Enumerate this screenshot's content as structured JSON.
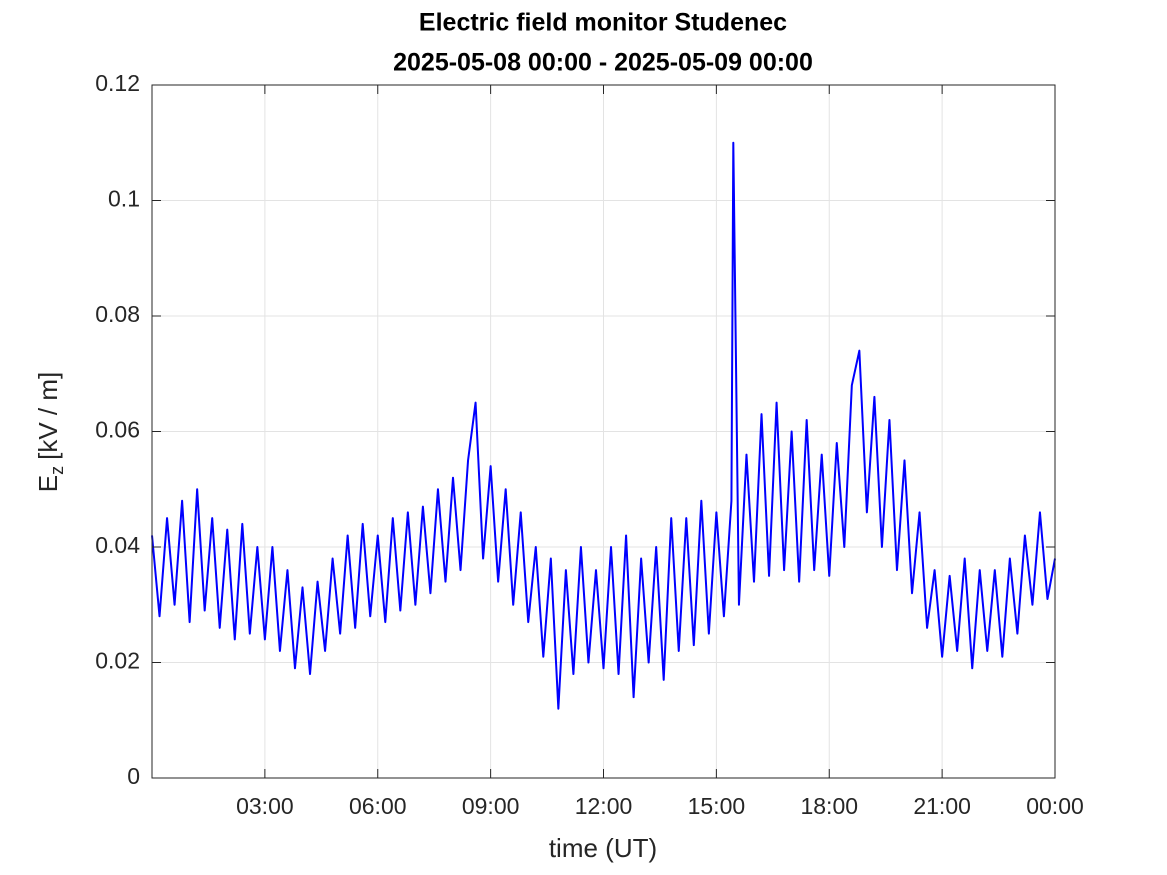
{
  "chart_data": {
    "type": "line",
    "title": "Electric field monitor Studenec",
    "subtitle": "2025-05-08 00:00 - 2025-05-09 00:00",
    "xlabel": "time (UT)",
    "ylabel": {
      "symbol": "E",
      "subscript": "z",
      "unit": "[kV / m]"
    },
    "xlim": [
      0,
      24
    ],
    "ylim": [
      0,
      0.12
    ],
    "xticks": [
      {
        "value": 3,
        "label": "03:00"
      },
      {
        "value": 6,
        "label": "06:00"
      },
      {
        "value": 9,
        "label": "09:00"
      },
      {
        "value": 12,
        "label": "12:00"
      },
      {
        "value": 15,
        "label": "15:00"
      },
      {
        "value": 18,
        "label": "18:00"
      },
      {
        "value": 21,
        "label": "21:00"
      },
      {
        "value": 24,
        "label": "00:00"
      }
    ],
    "yticks": [
      0,
      0.02,
      0.04,
      0.06,
      0.08,
      0.1,
      0.12
    ],
    "grid": true,
    "x": [
      0,
      0.2,
      0.4,
      0.6,
      0.8,
      1,
      1.2,
      1.4,
      1.6,
      1.8,
      2,
      2.2,
      2.4,
      2.6,
      2.8,
      3,
      3.2,
      3.4,
      3.6,
      3.8,
      4,
      4.2,
      4.4,
      4.6,
      4.8,
      5,
      5.2,
      5.4,
      5.6,
      5.8,
      6,
      6.2,
      6.4,
      6.6,
      6.8,
      7,
      7.2,
      7.4,
      7.6,
      7.8,
      8,
      8.2,
      8.4,
      8.6,
      8.8,
      9,
      9.2,
      9.4,
      9.6,
      9.8,
      10,
      10.2,
      10.4,
      10.6,
      10.8,
      11,
      11.2,
      11.4,
      11.6,
      11.8,
      12,
      12.2,
      12.4,
      12.6,
      12.8,
      13,
      13.2,
      13.4,
      13.6,
      13.8,
      14,
      14.2,
      14.4,
      14.6,
      14.8,
      15,
      15.2,
      15.4,
      15.45,
      15.6,
      15.8,
      16,
      16.2,
      16.4,
      16.6,
      16.8,
      17,
      17.2,
      17.4,
      17.6,
      17.8,
      18,
      18.2,
      18.4,
      18.6,
      18.8,
      19,
      19.2,
      19.4,
      19.6,
      19.8,
      20,
      20.2,
      20.4,
      20.6,
      20.8,
      21,
      21.2,
      21.4,
      21.6,
      21.8,
      22,
      22.2,
      22.4,
      22.6,
      22.8,
      23,
      23.2,
      23.4,
      23.6,
      23.8,
      24
    ],
    "series": [
      {
        "color": "#0000ff",
        "values": [
          0.042,
          0.028,
          0.045,
          0.03,
          0.048,
          0.027,
          0.05,
          0.029,
          0.045,
          0.026,
          0.043,
          0.024,
          0.044,
          0.025,
          0.04,
          0.024,
          0.04,
          0.022,
          0.036,
          0.019,
          0.033,
          0.018,
          0.034,
          0.022,
          0.038,
          0.025,
          0.042,
          0.026,
          0.044,
          0.028,
          0.042,
          0.027,
          0.045,
          0.029,
          0.046,
          0.03,
          0.047,
          0.032,
          0.05,
          0.034,
          0.052,
          0.036,
          0.055,
          0.065,
          0.038,
          0.054,
          0.034,
          0.05,
          0.03,
          0.046,
          0.027,
          0.04,
          0.021,
          0.038,
          0.012,
          0.036,
          0.018,
          0.04,
          0.02,
          0.036,
          0.019,
          0.04,
          0.018,
          0.042,
          0.014,
          0.038,
          0.02,
          0.04,
          0.017,
          0.045,
          0.022,
          0.045,
          0.023,
          0.048,
          0.025,
          0.046,
          0.028,
          0.048,
          0.11,
          0.03,
          0.056,
          0.034,
          0.063,
          0.035,
          0.065,
          0.036,
          0.06,
          0.034,
          0.062,
          0.036,
          0.056,
          0.035,
          0.058,
          0.04,
          0.068,
          0.074,
          0.046,
          0.066,
          0.04,
          0.062,
          0.036,
          0.055,
          0.032,
          0.046,
          0.026,
          0.036,
          0.021,
          0.035,
          0.022,
          0.038,
          0.019,
          0.036,
          0.022,
          0.036,
          0.021,
          0.038,
          0.025,
          0.042,
          0.03,
          0.046,
          0.031,
          0.038
        ]
      }
    ]
  }
}
